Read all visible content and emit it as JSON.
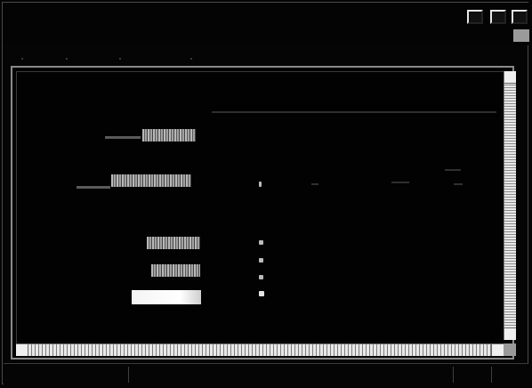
{
  "window": {
    "title": "",
    "controls": {
      "minimize_icon": "minimize-icon",
      "maximize_icon": "maximize-icon",
      "close_icon": "close-icon"
    }
  },
  "content": {
    "labels": [
      "",
      "",
      "",
      "",
      ""
    ],
    "note": ""
  },
  "status_bar": {
    "text": ""
  },
  "colors": {
    "background": "#050505",
    "scrollbar": "#cfcfcf",
    "frame": "#8a8a8a"
  }
}
